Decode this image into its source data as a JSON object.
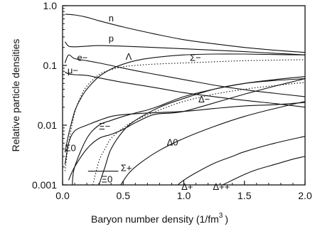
{
  "chart_data": {
    "type": "line",
    "title": "",
    "xlabel": "Baryon number density (1/fm",
    "xlabel_sup": "3",
    "xlabel_close": ")",
    "ylabel": "Relative particle densities",
    "xlim": [
      0,
      2.0
    ],
    "ylim": [
      0.001,
      1.0
    ],
    "yscale": "log",
    "x_ticks": [
      0.0,
      0.5,
      1.0,
      1.5,
      2.0
    ],
    "x_tick_labels": [
      "0.0",
      "0.5",
      "1.0",
      "1.5",
      "2.0"
    ],
    "y_ticks": [
      0.001,
      0.01,
      0.1,
      1.0
    ],
    "y_tick_labels": [
      "0.001",
      "0.01",
      "0.1",
      "1.0"
    ],
    "grid": false,
    "legend": "none (curves labeled directly)",
    "series": [
      {
        "name": "n",
        "style": "solid",
        "x": [
          0.02,
          0.1,
          0.2,
          0.3,
          0.5,
          0.75,
          1.0,
          1.25,
          1.5,
          1.75,
          2.0
        ],
        "y": [
          0.72,
          0.7,
          0.64,
          0.56,
          0.44,
          0.34,
          0.27,
          0.23,
          0.2,
          0.18,
          0.165
        ]
      },
      {
        "name": "p",
        "style": "solid",
        "x": [
          0.02,
          0.05,
          0.1,
          0.2,
          0.3,
          0.5,
          0.75,
          1.0,
          1.25,
          1.5,
          1.75,
          2.0
        ],
        "y": [
          0.25,
          0.21,
          0.205,
          0.21,
          0.215,
          0.21,
          0.2,
          0.19,
          0.18,
          0.17,
          0.16,
          0.15
        ]
      },
      {
        "name": "e−",
        "style": "solid",
        "x": [
          0.02,
          0.05,
          0.1,
          0.2,
          0.3,
          0.4,
          0.5,
          0.7,
          1.0,
          1.3,
          1.6,
          2.0
        ],
        "y": [
          0.11,
          0.15,
          0.13,
          0.12,
          0.11,
          0.1,
          0.09,
          0.075,
          0.058,
          0.045,
          0.037,
          0.03
        ]
      },
      {
        "name": "μ−",
        "style": "solid",
        "x": [
          0.02,
          0.05,
          0.1,
          0.2,
          0.3,
          0.5,
          0.75,
          1.0,
          1.25,
          1.5,
          1.75,
          2.0
        ],
        "y": [
          0.078,
          0.072,
          0.07,
          0.068,
          0.062,
          0.052,
          0.043,
          0.035,
          0.03,
          0.026,
          0.023,
          0.02
        ]
      },
      {
        "name": "Λ",
        "style": "solid",
        "x": [
          0.02,
          0.05,
          0.1,
          0.15,
          0.2,
          0.3,
          0.4,
          0.5,
          0.6,
          0.75,
          1.0,
          1.25,
          1.5,
          1.75,
          2.0
        ],
        "y": [
          0.0035,
          0.007,
          0.017,
          0.028,
          0.04,
          0.065,
          0.087,
          0.105,
          0.12,
          0.135,
          0.15,
          0.155,
          0.155,
          0.152,
          0.15
        ]
      },
      {
        "name": "Σ−",
        "style": "dotted",
        "x": [
          0.02,
          0.05,
          0.1,
          0.15,
          0.2,
          0.3,
          0.4,
          0.5,
          0.6,
          0.75,
          1.0,
          1.25,
          1.5,
          2.0
        ],
        "y": [
          0.0017,
          0.005,
          0.016,
          0.03,
          0.045,
          0.07,
          0.085,
          0.095,
          0.1,
          0.105,
          0.11,
          0.115,
          0.12,
          0.125
        ]
      },
      {
        "name": "Δ−",
        "style": "solid",
        "x": [
          0.05,
          0.1,
          0.2,
          0.3,
          0.4,
          0.5,
          0.6,
          0.75,
          0.9,
          1.0,
          1.2,
          1.5,
          1.75,
          2.0
        ],
        "y": [
          0.0012,
          0.002,
          0.004,
          0.006,
          0.007,
          0.0085,
          0.011,
          0.015,
          0.016,
          0.017,
          0.022,
          0.033,
          0.045,
          0.06
        ]
      },
      {
        "name": "Ξ−",
        "style": "solid",
        "x": [
          0.3,
          0.35,
          0.4,
          0.5,
          0.6,
          0.8,
          1.0,
          1.25,
          1.5,
          1.75,
          2.0
        ],
        "y": [
          0.001,
          0.002,
          0.004,
          0.008,
          0.012,
          0.02,
          0.028,
          0.04,
          0.05,
          0.056,
          0.06
        ]
      },
      {
        "name": "Σ0",
        "style": "solid",
        "x": [
          0.02,
          0.05,
          0.1,
          0.2,
          0.3,
          0.4,
          0.5,
          0.7,
          1.0,
          1.25,
          1.5,
          1.75,
          2.0
        ],
        "y": [
          0.0022,
          0.005,
          0.008,
          0.01,
          0.012,
          0.014,
          0.015,
          0.016,
          0.017,
          0.019,
          0.021,
          0.022,
          0.024
        ]
      },
      {
        "name": "Σ+",
        "style": "dotted",
        "x": [
          0.25,
          0.3,
          0.35,
          0.4,
          0.5,
          0.6,
          0.8,
          1.0,
          1.25,
          1.5,
          1.75,
          2.0
        ],
        "y": [
          0.001,
          0.0025,
          0.004,
          0.006,
          0.009,
          0.012,
          0.018,
          0.025,
          0.033,
          0.04,
          0.046,
          0.052
        ]
      },
      {
        "name": "Ξ0",
        "style": "solid",
        "x": [
          0.08,
          0.1,
          0.2,
          0.3,
          0.4,
          0.5,
          0.6,
          0.7,
          0.8,
          1.0,
          1.25,
          1.5,
          1.75,
          2.0
        ],
        "y": [
          0.001,
          0.002,
          0.006,
          0.01,
          0.012,
          0.014,
          0.016,
          0.018,
          0.021,
          0.03,
          0.04,
          0.05,
          0.058,
          0.065
        ]
      },
      {
        "name": "Δ0",
        "style": "solid",
        "x": [
          0.48,
          0.55,
          0.65,
          0.8,
          1.0,
          1.25,
          1.5,
          1.75,
          2.0
        ],
        "y": [
          0.001,
          0.0016,
          0.0024,
          0.0038,
          0.006,
          0.0095,
          0.014,
          0.019,
          0.025
        ]
      },
      {
        "name": "Δ+",
        "style": "solid",
        "x": [
          0.95,
          1.0,
          1.1,
          1.25,
          1.4,
          1.5,
          1.75,
          2.0
        ],
        "y": [
          0.001,
          0.0012,
          0.0016,
          0.0023,
          0.003,
          0.0036,
          0.005,
          0.0065
        ]
      },
      {
        "name": "Δ++",
        "style": "solid",
        "x": [
          1.32,
          1.4,
          1.5,
          1.6,
          1.75,
          1.9,
          2.0
        ],
        "y": [
          0.001,
          0.0012,
          0.0015,
          0.0018,
          0.0022,
          0.0027,
          0.003
        ]
      }
    ],
    "annotations": [
      {
        "text": "n",
        "x": 0.38,
        "y": 0.55
      },
      {
        "text": "p",
        "x": 0.38,
        "y": 0.25
      },
      {
        "text": "e−",
        "x": 0.12,
        "y": 0.12
      },
      {
        "text": "Λ",
        "x": 0.52,
        "y": 0.125
      },
      {
        "text": "Σ−",
        "x": 1.05,
        "y": 0.12
      },
      {
        "text": "μ−",
        "x": 0.04,
        "y": 0.073
      },
      {
        "text": "Δ−",
        "x": 1.12,
        "y": 0.024
      },
      {
        "text": "Ξ−",
        "x": 0.3,
        "y": 0.0085
      },
      {
        "text": "Σ0",
        "x": 0.02,
        "y": 0.0037
      },
      {
        "text": "Δ0",
        "x": 0.86,
        "y": 0.0046
      },
      {
        "text": "Σ+",
        "x": 0.48,
        "y": 0.0017
      },
      {
        "text": "Ξ0",
        "x": 0.32,
        "y": 0.0011
      },
      {
        "text": "Δ+",
        "x": 0.98,
        "y": 0.00083
      },
      {
        "text": "Δ++",
        "x": 1.24,
        "y": 0.00083
      }
    ]
  }
}
